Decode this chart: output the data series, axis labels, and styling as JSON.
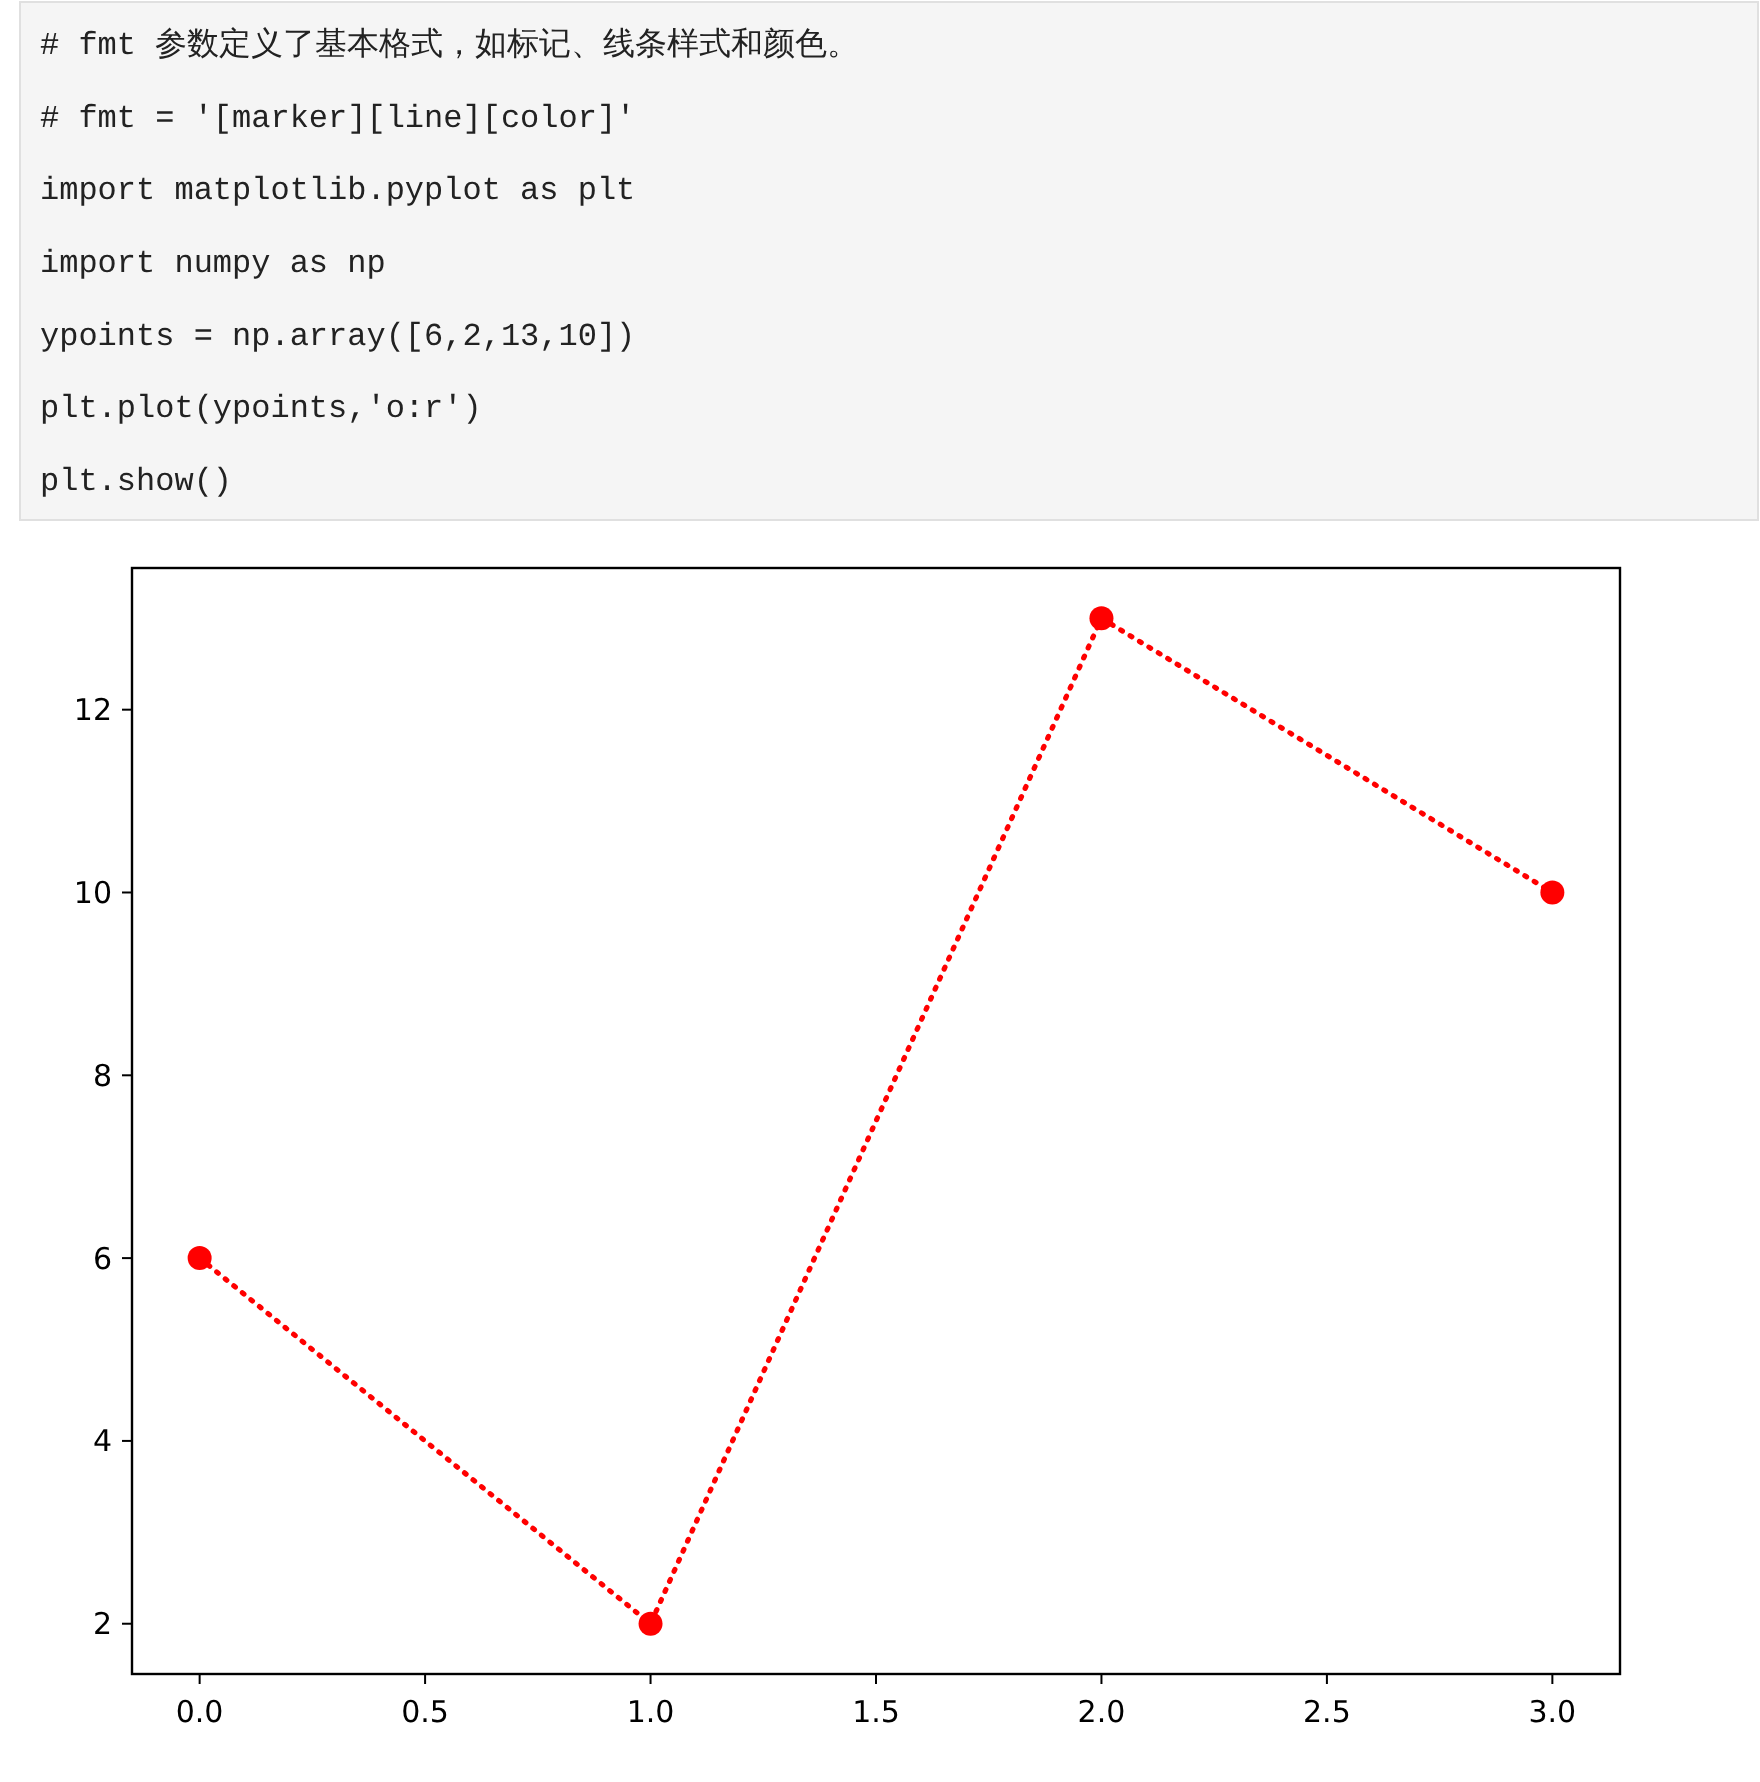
{
  "chart_data": {
    "type": "line",
    "x": [
      0,
      1,
      2,
      3
    ],
    "values": [
      6,
      2,
      13,
      10
    ],
    "color": "#ff0000",
    "marker": "circle",
    "line_style": "dotted",
    "xlim": [
      -0.15,
      3.15
    ],
    "ylim": [
      1.45,
      13.55
    ],
    "xticks": [
      {
        "value": 0,
        "label": "0.0"
      },
      {
        "value": 0.5,
        "label": "0.5"
      },
      {
        "value": 1,
        "label": "1.0"
      },
      {
        "value": 1.5,
        "label": "1.5"
      },
      {
        "value": 2,
        "label": "2.0"
      },
      {
        "value": 2.5,
        "label": "2.5"
      },
      {
        "value": 3,
        "label": "3.0"
      }
    ],
    "yticks": [
      2,
      4,
      6,
      8,
      10,
      12
    ],
    "annotations": [
      "# fmt 参数定义了基本格式，如标记、线条样式和颜色。",
      "# fmt = '[marker][line][color]'",
      "import matplotlib.pyplot as plt",
      "import numpy as np",
      "ypoints = np.array([6,2,13,10])",
      "plt.plot(ypoints,'o:r')",
      "plt.show()"
    ]
  }
}
